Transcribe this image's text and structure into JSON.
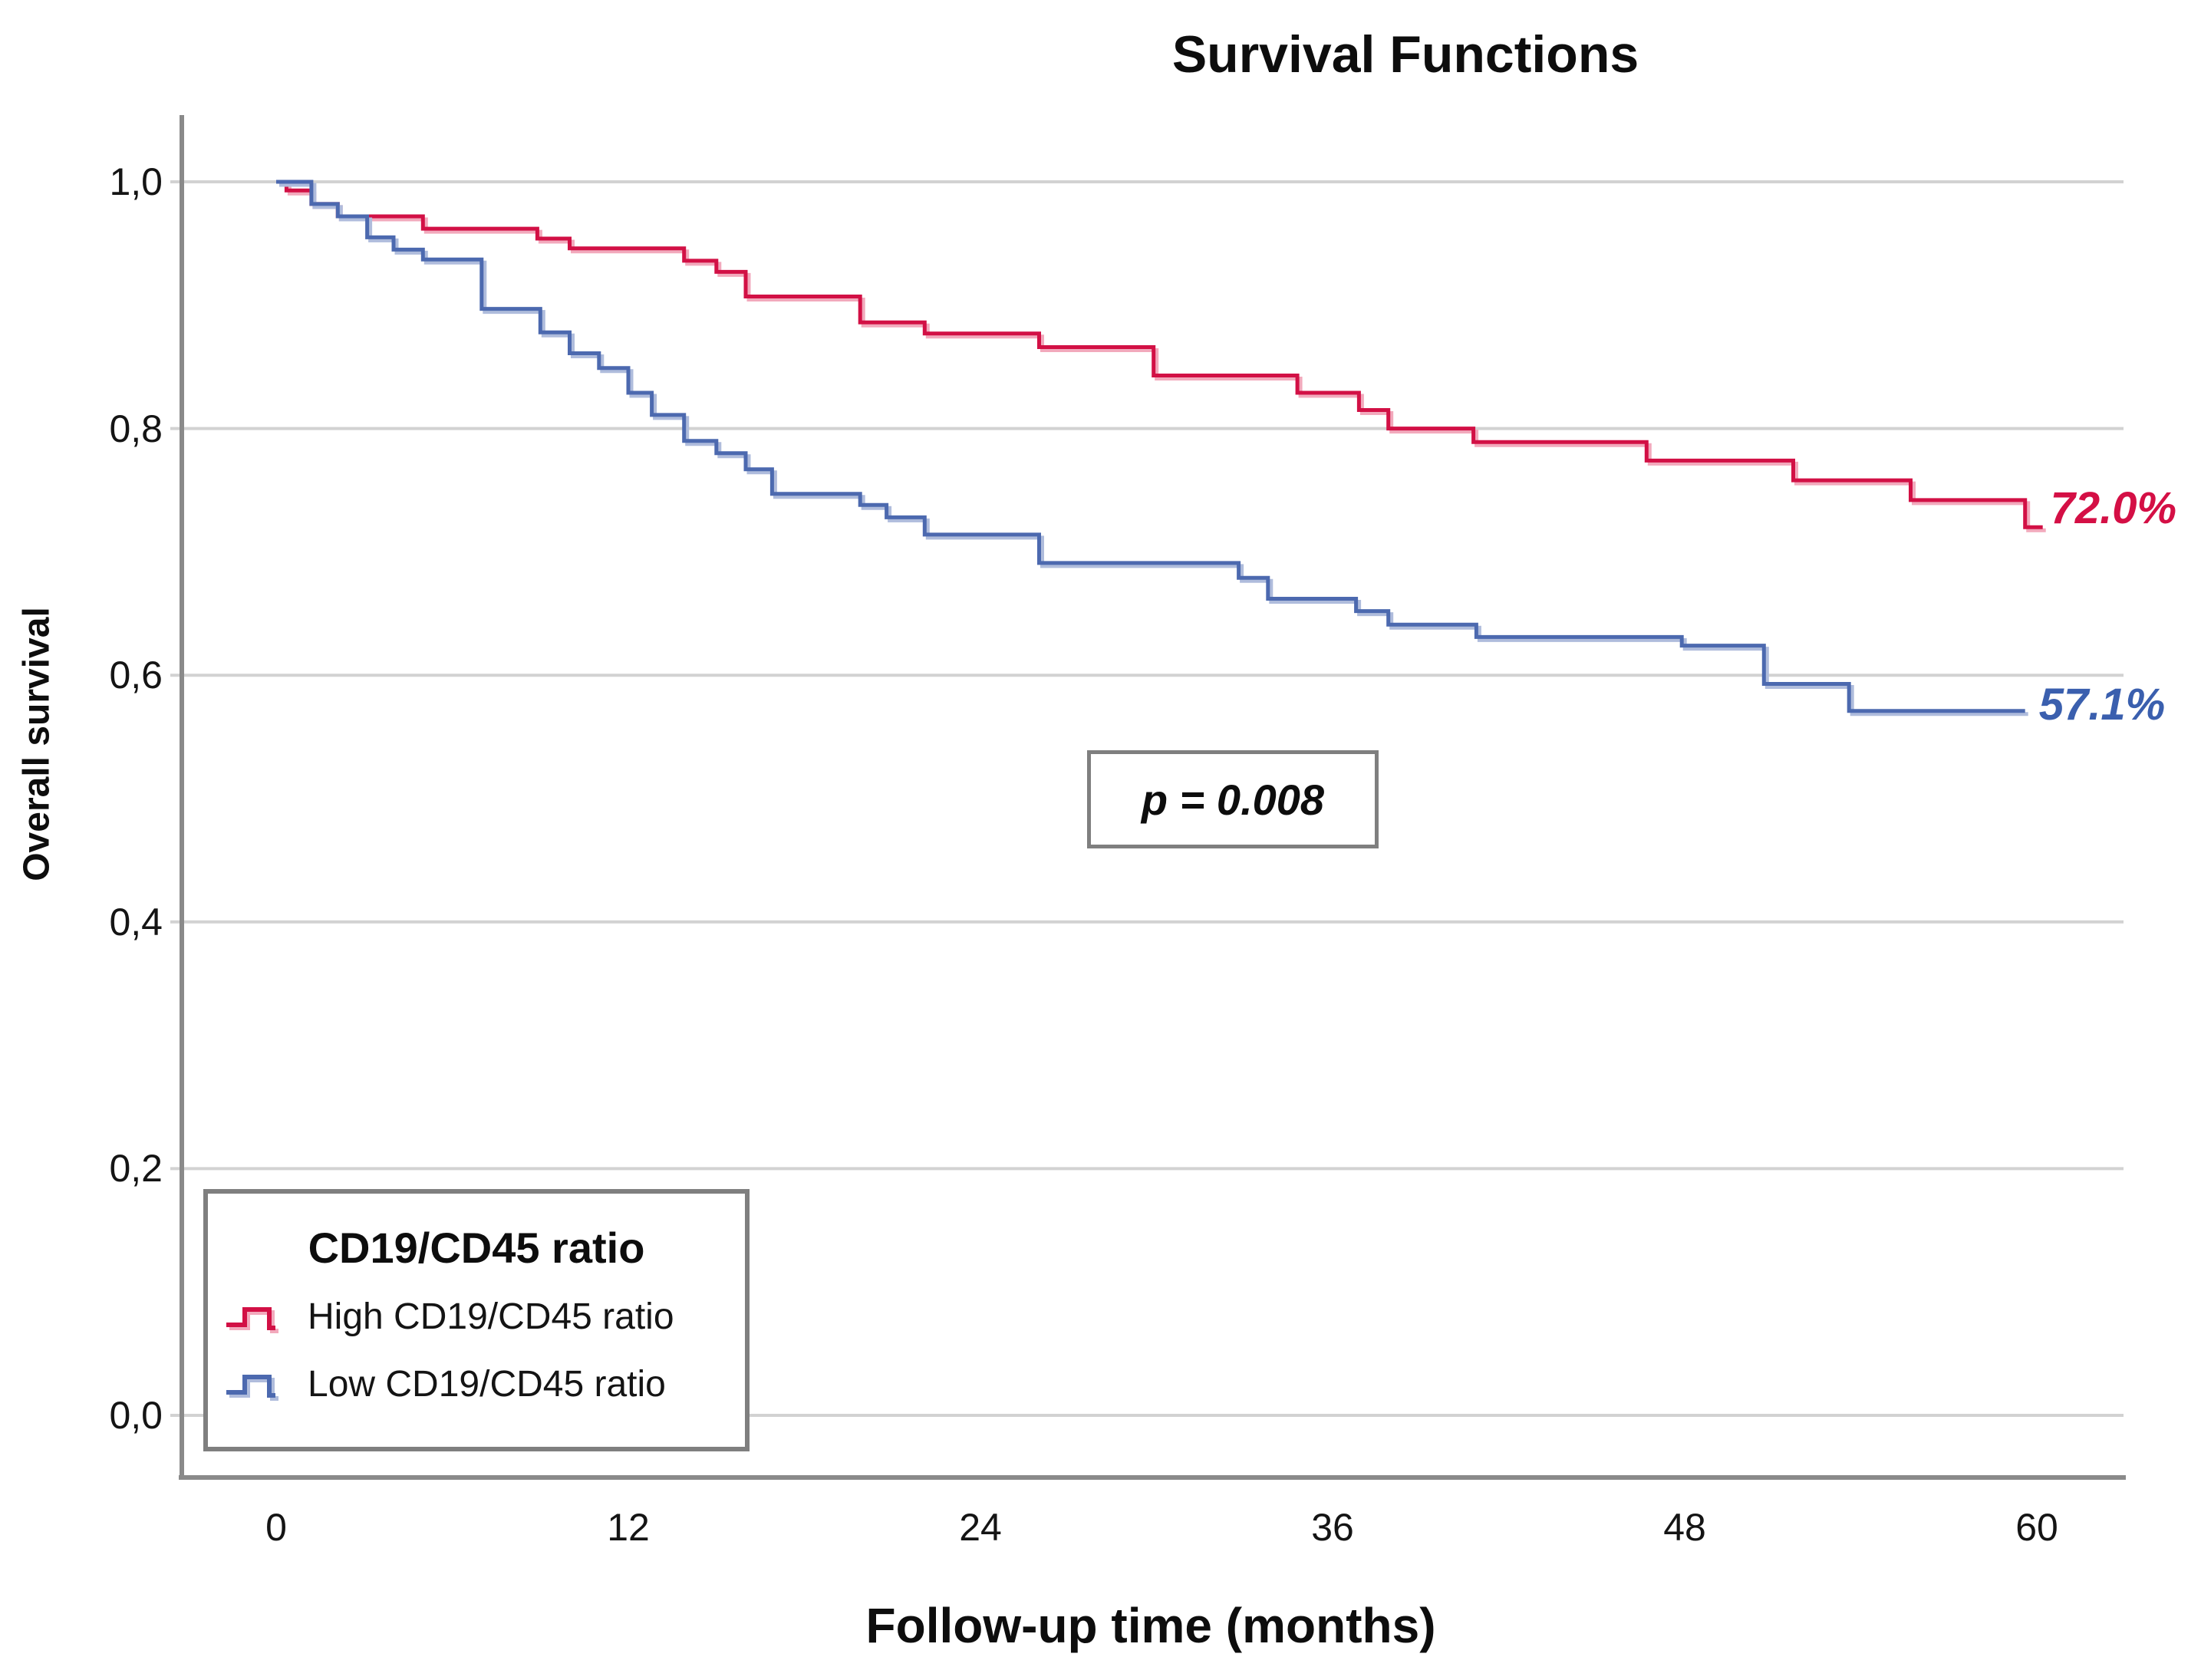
{
  "title": "Survival Functions",
  "x_axis": {
    "label": "Follow-up time (months)",
    "ticks": [
      "0",
      "12",
      "24",
      "36",
      "48",
      "60"
    ],
    "tick_values": [
      0,
      12,
      24,
      36,
      48,
      60
    ]
  },
  "y_axis": {
    "label": "Overall survival",
    "ticks": [
      "1,0",
      "0,8",
      "0,6",
      "0,4",
      "0,2",
      "0,0"
    ],
    "tick_values": [
      1.0,
      0.8,
      0.6,
      0.4,
      0.2,
      0.0
    ]
  },
  "annotation": {
    "p_label": "p = 0.008"
  },
  "legend": {
    "title": "CD19/CD45 ratio",
    "items": [
      {
        "label": "High CD19/CD45 ratio",
        "color": "#d21045",
        "halo_color": "#f2a9bc"
      },
      {
        "label": "Low CD19/CD45 ratio",
        "color": "#4c69af",
        "halo_color": "#afbcdc"
      }
    ]
  },
  "chart_data": {
    "type": "line",
    "subtype": "kaplan-meier-step",
    "title": "Survival Functions",
    "xlabel": "Follow-up time (months)",
    "ylabel": "Overall survival",
    "xlim": [
      0,
      63
    ],
    "ylim": [
      0.0,
      1.05
    ],
    "x_ticks": [
      0,
      12,
      24,
      36,
      48,
      60
    ],
    "y_ticks": [
      1.0,
      0.8,
      0.6,
      0.4,
      0.2,
      0.0
    ],
    "grid": "horizontal",
    "legend_position": "bottom-left",
    "p_value_label": "p = 0.008",
    "series": [
      {
        "name": "High CD19/CD45 ratio",
        "color": "#d21045",
        "halo_color": "#f2a9bc",
        "end_label": "72.0%",
        "end_label_color": "#d40f45",
        "end_value": 0.72,
        "end_time": 60.2,
        "points": [
          [
            0,
            1.0
          ],
          [
            0.35,
            0.993
          ],
          [
            1.2,
            0.982
          ],
          [
            2.1,
            0.972
          ],
          [
            5.0,
            0.962
          ],
          [
            8.9,
            0.954
          ],
          [
            10.0,
            0.946
          ],
          [
            13.9,
            0.936
          ],
          [
            15.0,
            0.927
          ],
          [
            16.0,
            0.907
          ],
          [
            19.9,
            0.886
          ],
          [
            22.1,
            0.877
          ],
          [
            26.0,
            0.866
          ],
          [
            29.9,
            0.843
          ],
          [
            34.8,
            0.829
          ],
          [
            36.9,
            0.815
          ],
          [
            37.9,
            0.8
          ],
          [
            40.8,
            0.789
          ],
          [
            46.7,
            0.774
          ],
          [
            51.7,
            0.758
          ],
          [
            55.7,
            0.742
          ],
          [
            59.6,
            0.72
          ]
        ]
      },
      {
        "name": "Low CD19/CD45 ratio",
        "color": "#4c69af",
        "halo_color": "#afbcdc",
        "end_label": "57.1%",
        "end_label_color": "#3a5fae",
        "end_value": 0.571,
        "end_time": 59.6,
        "points": [
          [
            0,
            1.0
          ],
          [
            1.2,
            0.982
          ],
          [
            2.1,
            0.972
          ],
          [
            3.1,
            0.955
          ],
          [
            4.0,
            0.945
          ],
          [
            5.0,
            0.937
          ],
          [
            7.0,
            0.897
          ],
          [
            9.0,
            0.878
          ],
          [
            10.0,
            0.861
          ],
          [
            11.0,
            0.849
          ],
          [
            12.0,
            0.829
          ],
          [
            12.8,
            0.811
          ],
          [
            13.9,
            0.79
          ],
          [
            15.0,
            0.78
          ],
          [
            16.0,
            0.767
          ],
          [
            16.9,
            0.747
          ],
          [
            19.9,
            0.738
          ],
          [
            20.8,
            0.728
          ],
          [
            22.1,
            0.714
          ],
          [
            26.0,
            0.691
          ],
          [
            32.8,
            0.679
          ],
          [
            33.8,
            0.662
          ],
          [
            36.8,
            0.652
          ],
          [
            37.9,
            0.641
          ],
          [
            40.9,
            0.631
          ],
          [
            47.9,
            0.624
          ],
          [
            50.7,
            0.593
          ],
          [
            53.6,
            0.571
          ]
        ]
      }
    ]
  },
  "colors": {
    "axis": "#8a8a8a",
    "gridline": "#d2d2d2",
    "box_border": "#7f7f7f",
    "text": "#111111"
  }
}
